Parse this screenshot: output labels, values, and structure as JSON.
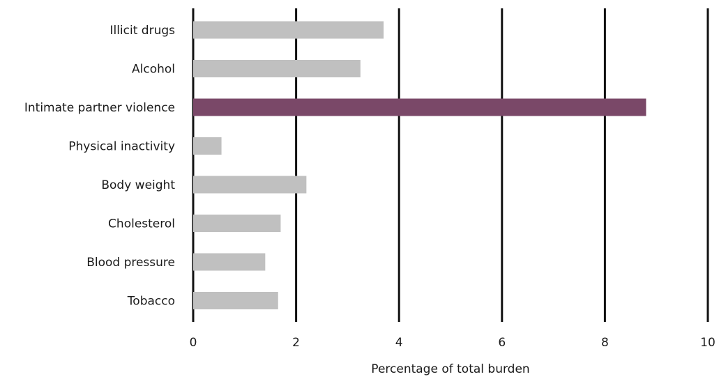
{
  "chart_data": {
    "type": "bar",
    "orientation": "horizontal",
    "categories": [
      "Illicit drugs",
      "Alcohol",
      "Intimate partner violence",
      "Physical inactivity",
      "Body weight",
      "Cholesterol",
      "Blood pressure",
      "Tobacco"
    ],
    "values": [
      3.7,
      3.25,
      8.8,
      0.55,
      2.2,
      1.7,
      1.4,
      1.65
    ],
    "highlight_index": 2,
    "title": "",
    "xlabel": "Percentage of total burden",
    "ylabel": "",
    "xlim": [
      0,
      10
    ],
    "xticks": [
      0,
      2,
      4,
      6,
      8,
      10
    ],
    "xtick_labels": [
      "0",
      "2",
      "4",
      "6",
      "8",
      "10"
    ],
    "grid": "vertical",
    "colors": {
      "default_bar": "#c0c0c0",
      "highlight_bar": "#7a4868",
      "grid": "#111111",
      "text": "#1a1a1a"
    }
  }
}
